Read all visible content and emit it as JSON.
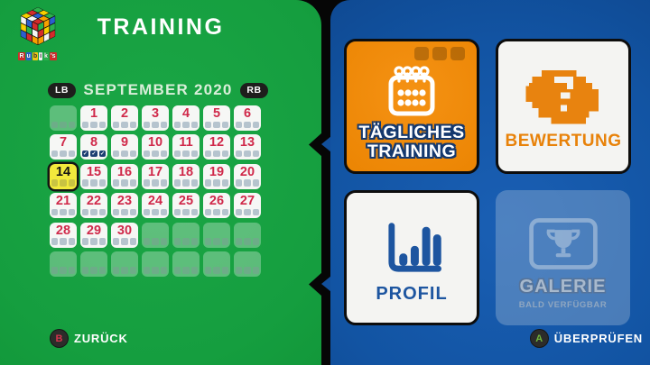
{
  "window": {
    "title": "TRAINING"
  },
  "logo": {
    "brand": "Rubik's",
    "brand_parts": [
      "R",
      "u",
      "b",
      "i",
      "k",
      "'s"
    ]
  },
  "calendar": {
    "prev_button_label": "LB",
    "next_button_label": "RB",
    "month_label": "SEPTEMBER 2020",
    "check_glyph": "✓",
    "cells": [
      {
        "day": "",
        "state": "empty"
      },
      {
        "day": "1",
        "state": "default"
      },
      {
        "day": "2",
        "state": "default"
      },
      {
        "day": "3",
        "state": "default"
      },
      {
        "day": "4",
        "state": "default"
      },
      {
        "day": "5",
        "state": "default"
      },
      {
        "day": "6",
        "state": "default"
      },
      {
        "day": "7",
        "state": "default"
      },
      {
        "day": "8",
        "state": "checked"
      },
      {
        "day": "9",
        "state": "default"
      },
      {
        "day": "10",
        "state": "default"
      },
      {
        "day": "11",
        "state": "default"
      },
      {
        "day": "12",
        "state": "default"
      },
      {
        "day": "13",
        "state": "default"
      },
      {
        "day": "14",
        "state": "selected"
      },
      {
        "day": "15",
        "state": "default"
      },
      {
        "day": "16",
        "state": "default"
      },
      {
        "day": "17",
        "state": "default"
      },
      {
        "day": "18",
        "state": "default"
      },
      {
        "day": "19",
        "state": "default"
      },
      {
        "day": "20",
        "state": "default"
      },
      {
        "day": "21",
        "state": "default"
      },
      {
        "day": "22",
        "state": "default"
      },
      {
        "day": "23",
        "state": "default"
      },
      {
        "day": "24",
        "state": "default"
      },
      {
        "day": "25",
        "state": "default"
      },
      {
        "day": "26",
        "state": "default"
      },
      {
        "day": "27",
        "state": "default"
      },
      {
        "day": "28",
        "state": "default"
      },
      {
        "day": "29",
        "state": "default"
      },
      {
        "day": "30",
        "state": "default"
      },
      {
        "day": "",
        "state": "empty"
      },
      {
        "day": "",
        "state": "empty"
      },
      {
        "day": "",
        "state": "empty"
      },
      {
        "day": "",
        "state": "empty"
      },
      {
        "day": "",
        "state": "empty"
      },
      {
        "day": "",
        "state": "empty"
      },
      {
        "day": "",
        "state": "empty"
      },
      {
        "day": "",
        "state": "empty"
      },
      {
        "day": "",
        "state": "empty"
      },
      {
        "day": "",
        "state": "empty"
      },
      {
        "day": "",
        "state": "empty"
      }
    ]
  },
  "menu": {
    "tiles": {
      "daily": {
        "line1": "TÄGLICHES",
        "line2": "TRAINING"
      },
      "rating": {
        "label": "BEWERTUNG"
      },
      "profile": {
        "label": "PROFIL"
      },
      "gallery": {
        "label": "GALERIE",
        "sublabel": "BALD VERFÜGBAR"
      }
    }
  },
  "hints": {
    "back_button": "B",
    "back_label": "ZURÜCK",
    "confirm_button": "A",
    "confirm_label": "ÜBERPRÜFEN"
  },
  "colors": {
    "green": "#149a3c",
    "blue": "#1254a3",
    "orange": "#ef8600",
    "red": "#d5294d",
    "yellow": "#f2e93c"
  }
}
